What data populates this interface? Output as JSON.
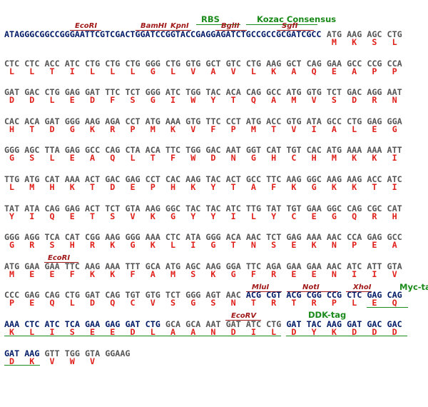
{
  "rows": [
    {
      "leader": "ATAGGGCGGCCGGGAATTCGTCGACTGGATCCGGTACCGAGGAGATCTGCCGCCGCGATCGCC",
      "codons": [
        "ATG",
        "AAG",
        "AGC",
        "CTG"
      ],
      "aa": [
        "M",
        "K",
        "S",
        "L"
      ],
      "annotations": [
        "RBS",
        "Kozac Consensus",
        "EcoRI",
        "BamHI",
        "KpnI",
        "BglII",
        "SgfI"
      ]
    },
    {
      "codons": [
        "CTC",
        "CTC",
        "ACC",
        "ATC",
        "CTG",
        "CTG",
        "CTG",
        "GGG",
        "CTG",
        "GTG",
        "GCT",
        "GTC",
        "CTG",
        "AAG",
        "GCT",
        "CAG",
        "GAA",
        "GCC",
        "CCG",
        "CCA"
      ],
      "aa": [
        "L",
        "L",
        "T",
        "I",
        "L",
        "L",
        "L",
        "G",
        "L",
        "V",
        "A",
        "V",
        "L",
        "K",
        "A",
        "Q",
        "E",
        "A",
        "P",
        "P"
      ]
    },
    {
      "codons": [
        "GAT",
        "GAC",
        "CTG",
        "GAG",
        "GAT",
        "TTC",
        "TCT",
        "GGG",
        "ATC",
        "TGG",
        "TAC",
        "ACA",
        "CAG",
        "GCC",
        "ATG",
        "GTG",
        "TCT",
        "GAC",
        "AGG",
        "AAT"
      ],
      "aa": [
        "D",
        "D",
        "L",
        "E",
        "D",
        "F",
        "S",
        "G",
        "I",
        "W",
        "Y",
        "T",
        "Q",
        "A",
        "M",
        "V",
        "S",
        "D",
        "R",
        "N"
      ]
    },
    {
      "codons": [
        "CAC",
        "ACA",
        "GAT",
        "GGG",
        "AAG",
        "AGA",
        "CCT",
        "ATG",
        "AAA",
        "GTG",
        "TTC",
        "CCT",
        "ATG",
        "ACC",
        "GTG",
        "ATA",
        "GCC",
        "CTG",
        "GAG",
        "GGA"
      ],
      "aa": [
        "H",
        "T",
        "D",
        "G",
        "K",
        "R",
        "P",
        "M",
        "K",
        "V",
        "F",
        "P",
        "M",
        "T",
        "V",
        "I",
        "A",
        "L",
        "E",
        "G"
      ]
    },
    {
      "codons": [
        "GGG",
        "AGC",
        "TTA",
        "GAG",
        "GCC",
        "CAG",
        "CTA",
        "ACA",
        "TTC",
        "TGG",
        "GAC",
        "AAT",
        "GGT",
        "CAT",
        "TGT",
        "CAC",
        "ATG",
        "AAA",
        "AAA",
        "ATT"
      ],
      "aa": [
        "G",
        "S",
        "L",
        "E",
        "A",
        "Q",
        "L",
        "T",
        "F",
        "W",
        "D",
        "N",
        "G",
        "H",
        "C",
        "H",
        "M",
        "K",
        "K",
        "I"
      ]
    },
    {
      "codons": [
        "TTG",
        "ATG",
        "CAT",
        "AAA",
        "ACT",
        "GAC",
        "GAG",
        "CCT",
        "CAC",
        "AAG",
        "TAC",
        "ACT",
        "GCC",
        "TTC",
        "AAG",
        "GGC",
        "AAG",
        "AAG",
        "ACC",
        "ATC"
      ],
      "aa": [
        "L",
        "M",
        "H",
        "K",
        "T",
        "D",
        "E",
        "P",
        "H",
        "K",
        "Y",
        "T",
        "A",
        "F",
        "K",
        "G",
        "K",
        "K",
        "T",
        "I"
      ]
    },
    {
      "codons": [
        "TAT",
        "ATA",
        "CAG",
        "GAG",
        "ACT",
        "TCT",
        "GTA",
        "AAG",
        "GGC",
        "TAC",
        "TAC",
        "ATC",
        "TTG",
        "TAT",
        "TGT",
        "GAA",
        "GGC",
        "CAG",
        "CGC",
        "CAT"
      ],
      "aa": [
        "Y",
        "I",
        "Q",
        "E",
        "T",
        "S",
        "V",
        "K",
        "G",
        "Y",
        "Y",
        "I",
        "L",
        "Y",
        "C",
        "E",
        "G",
        "Q",
        "R",
        "H"
      ]
    },
    {
      "codons": [
        "GGG",
        "AGG",
        "TCA",
        "CAT",
        "CGG",
        "AAG",
        "GGG",
        "AAA",
        "CTC",
        "ATA",
        "GGG",
        "ACA",
        "AAC",
        "TCT",
        "GAG",
        "AAA",
        "AAC",
        "CCA",
        "GAG",
        "GCC"
      ],
      "aa": [
        "G",
        "R",
        "S",
        "H",
        "R",
        "K",
        "G",
        "K",
        "L",
        "I",
        "G",
        "T",
        "N",
        "S",
        "E",
        "K",
        "N",
        "P",
        "E",
        "A"
      ]
    },
    {
      "codons": [
        "ATG",
        "GAA",
        "GAA",
        "TTC",
        "AAG",
        "AAA",
        "TTT",
        "GCA",
        "ATG",
        "AGC",
        "AAG",
        "GGA",
        "TTC",
        "AGA",
        "GAA",
        "GAA",
        "AAC",
        "ATC",
        "ATT",
        "GTA"
      ],
      "aa": [
        "M",
        "E",
        "E",
        "F",
        "K",
        "K",
        "F",
        "A",
        "M",
        "S",
        "K",
        "G",
        "F",
        "R",
        "E",
        "E",
        "N",
        "I",
        "I",
        "V"
      ],
      "annotations": [
        "EcoRI"
      ]
    },
    {
      "codons": [
        "CCC",
        "GAG",
        "CAG",
        "CTG",
        "GAT",
        "CAG",
        "TGT",
        "GTG",
        "TCT",
        "GGG",
        "AGT",
        "AAC",
        "ACG",
        "CGT",
        "ACG",
        "CGG",
        "CCG",
        "CTC",
        "GAG",
        "CAG"
      ],
      "aa": [
        "P",
        "E",
        "Q",
        "L",
        "D",
        "Q",
        "C",
        "V",
        "S",
        "G",
        "S",
        "N",
        "T",
        "R",
        "T",
        "R",
        "P",
        "L",
        "E",
        "Q"
      ],
      "annotations": [
        "MluI",
        "NotI",
        "XhoI",
        "Myc-tag"
      ]
    },
    {
      "codons": [
        "AAA",
        "CTC",
        "ATC",
        "TCA",
        "GAA",
        "GAG",
        "GAT",
        "CTG",
        "GCA",
        "GCA",
        "AAT",
        "GAT",
        "ATC",
        "CTG",
        "GAT",
        "TAC",
        "AAG",
        "GAT",
        "GAC",
        "GAC"
      ],
      "aa": [
        "K",
        "L",
        "I",
        "S",
        "E",
        "E",
        "D",
        "L",
        "A",
        "A",
        "N",
        "D",
        "I",
        "L",
        "D",
        "Y",
        "K",
        "D",
        "D",
        "D"
      ],
      "annotations": [
        "EcoRV",
        "DDK-tag"
      ]
    },
    {
      "codons": [
        "GAT",
        "AAG",
        "GTT",
        "TGG",
        "GTA",
        "GGAAG"
      ],
      "aa": [
        "D",
        "K",
        "V",
        "W",
        "V"
      ]
    }
  ]
}
